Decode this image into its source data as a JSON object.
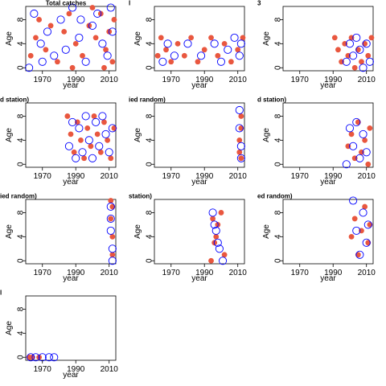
{
  "figure": {
    "xlabel": "year",
    "ylabel": "Age",
    "x_ticks": [
      1970,
      1990,
      2010
    ],
    "y_ticks": [
      0,
      4,
      8
    ],
    "colors": {
      "filled": "#e9573f",
      "outline": "#0000ff"
    }
  },
  "chart_data": [
    {
      "type": "scatter",
      "title": "Total catches",
      "xlabel": "year",
      "ylabel": "Age",
      "xlim": [
        1960,
        2014
      ],
      "ylim": [
        -0.5,
        10.2
      ],
      "series": [
        {
          "name": "",
          "style": "filled",
          "points": [
            [
              1963,
              2
            ],
            [
              1966,
              5
            ],
            [
              1968,
              8
            ],
            [
              1972,
              3
            ],
            [
              1975,
              7
            ],
            [
              1979,
              1
            ],
            [
              1983,
              6
            ],
            [
              1986,
              9
            ],
            [
              1990,
              4
            ],
            [
              1994,
              2
            ],
            [
              1998,
              7
            ],
            [
              2002,
              5
            ],
            [
              2005,
              9
            ],
            [
              2008,
              3
            ],
            [
              2010,
              6
            ],
            [
              2012,
              1
            ],
            [
              2013,
              8
            ],
            [
              2007,
              0
            ],
            [
              2000,
              10
            ],
            [
              1988,
              0
            ]
          ]
        },
        {
          "name": "",
          "style": "open",
          "points": [
            [
              1962,
              0
            ],
            [
              1965,
              9
            ],
            [
              1969,
              4
            ],
            [
              1973,
              6
            ],
            [
              1977,
              2
            ],
            [
              1981,
              8
            ],
            [
              1984,
              3
            ],
            [
              1988,
              10
            ],
            [
              1992,
              5
            ],
            [
              1996,
              1
            ],
            [
              2000,
              7
            ],
            [
              2003,
              9
            ],
            [
              2006,
              4
            ],
            [
              2009,
              2
            ],
            [
              2011,
              10
            ],
            [
              2012,
              6
            ],
            [
              1993,
              8
            ],
            [
              1970,
              1
            ]
          ]
        }
      ]
    },
    {
      "type": "scatter",
      "title": "l",
      "xlabel": "year",
      "ylabel": "Age",
      "xlim": [
        1960,
        2014
      ],
      "ylim": [
        -0.5,
        10.2
      ],
      "series": [
        {
          "name": "",
          "style": "filled",
          "points": [
            [
              1962,
              2
            ],
            [
              1964,
              5
            ],
            [
              1967,
              3
            ],
            [
              1970,
              1
            ],
            [
              1974,
              4
            ],
            [
              1978,
              2
            ],
            [
              1982,
              5
            ],
            [
              1986,
              1
            ],
            [
              1990,
              3
            ],
            [
              1994,
              5
            ],
            [
              1998,
              2
            ],
            [
              2002,
              4
            ],
            [
              2006,
              1
            ],
            [
              2010,
              3
            ],
            [
              2013,
              5
            ]
          ]
        },
        {
          "name": "",
          "style": "open",
          "points": [
            [
              1965,
              1
            ],
            [
              1968,
              4
            ],
            [
              1972,
              2
            ],
            [
              1980,
              4
            ],
            [
              1988,
              2
            ],
            [
              1996,
              4
            ],
            [
              2000,
              1
            ],
            [
              2004,
              3
            ],
            [
              2008,
              5
            ],
            [
              2011,
              2
            ],
            [
              2012,
              4
            ]
          ]
        }
      ]
    },
    {
      "type": "scatter",
      "title": "3",
      "xlabel": "year",
      "ylabel": "Age",
      "xlim": [
        1960,
        2014
      ],
      "ylim": [
        -0.5,
        10.2
      ],
      "series": [
        {
          "name": "",
          "style": "filled",
          "points": [
            [
              1991,
              5
            ],
            [
              1993,
              3
            ],
            [
              1995,
              1
            ],
            [
              1997,
              4
            ],
            [
              1999,
              2
            ],
            [
              2001,
              5
            ],
            [
              2003,
              0
            ],
            [
              2005,
              3
            ],
            [
              2007,
              1
            ],
            [
              2009,
              4
            ],
            [
              2011,
              2
            ],
            [
              2013,
              5
            ]
          ]
        },
        {
          "name": "",
          "style": "open",
          "points": [
            [
              1998,
              1
            ],
            [
              2000,
              4
            ],
            [
              2002,
              2
            ],
            [
              2004,
              5
            ],
            [
              2006,
              3
            ],
            [
              2008,
              0
            ],
            [
              2010,
              4
            ],
            [
              2012,
              1
            ]
          ]
        }
      ]
    },
    {
      "type": "scatter",
      "title": "d station)",
      "xlabel": "year",
      "ylabel": "Age",
      "xlim": [
        1960,
        2014
      ],
      "ylim": [
        -0.5,
        10.2
      ],
      "series": [
        {
          "name": "",
          "style": "filled",
          "points": [
            [
              1985,
              8
            ],
            [
              1987,
              5
            ],
            [
              1989,
              2
            ],
            [
              1991,
              7
            ],
            [
              1993,
              4
            ],
            [
              1995,
              1
            ],
            [
              1997,
              6
            ],
            [
              1999,
              3
            ],
            [
              2001,
              8
            ],
            [
              2003,
              5
            ],
            [
              2005,
              2
            ],
            [
              2007,
              7
            ],
            [
              2009,
              4
            ],
            [
              2011,
              1
            ],
            [
              2013,
              6
            ]
          ]
        },
        {
          "name": "",
          "style": "open",
          "points": [
            [
              1986,
              3
            ],
            [
              1988,
              7
            ],
            [
              1990,
              1
            ],
            [
              1992,
              6
            ],
            [
              1994,
              2
            ],
            [
              1996,
              8
            ],
            [
              1998,
              4
            ],
            [
              2000,
              1
            ],
            [
              2002,
              7
            ],
            [
              2004,
              3
            ],
            [
              2006,
              8
            ],
            [
              2008,
              5
            ],
            [
              2010,
              2
            ],
            [
              2012,
              6
            ]
          ]
        }
      ]
    },
    {
      "type": "scatter",
      "title": "ied random)",
      "xlabel": "year",
      "ylabel": "Age",
      "xlim": [
        1960,
        2014
      ],
      "ylim": [
        -0.5,
        10.2
      ],
      "series": [
        {
          "name": "",
          "style": "filled",
          "points": [
            [
              2011,
              2
            ],
            [
              2011,
              4
            ],
            [
              2012,
              6
            ],
            [
              2012,
              8
            ],
            [
              2012,
              1
            ]
          ]
        },
        {
          "name": "",
          "style": "open",
          "points": [
            [
              2011,
              9
            ],
            [
              2011,
              6
            ],
            [
              2012,
              1
            ],
            [
              2012,
              3
            ]
          ]
        }
      ]
    },
    {
      "type": "scatter",
      "title": "d station)",
      "xlabel": "year",
      "ylabel": "Age",
      "xlim": [
        1960,
        2014
      ],
      "ylim": [
        -0.5,
        10.2
      ],
      "series": [
        {
          "name": "",
          "style": "filled",
          "points": [
            [
              1999,
              3
            ],
            [
              2001,
              5
            ],
            [
              2003,
              1
            ],
            [
              2005,
              7
            ],
            [
              2007,
              2
            ],
            [
              2009,
              4
            ],
            [
              2011,
              0
            ],
            [
              2012,
              6
            ]
          ]
        },
        {
          "name": "",
          "style": "open",
          "points": [
            [
              1998,
              0
            ],
            [
              2000,
              6
            ],
            [
              2002,
              3
            ],
            [
              2004,
              7
            ],
            [
              2006,
              1
            ],
            [
              2008,
              5
            ],
            [
              2010,
              2
            ]
          ]
        }
      ]
    },
    {
      "type": "scatter",
      "title": "ied random)",
      "xlabel": "year",
      "ylabel": "Age",
      "xlim": [
        1960,
        2014
      ],
      "ylim": [
        -0.5,
        10.2
      ],
      "series": [
        {
          "name": "",
          "style": "filled",
          "points": [
            [
              2011,
              10
            ],
            [
              2011,
              7
            ],
            [
              2012,
              4
            ],
            [
              2012,
              1
            ],
            [
              2012,
              9
            ]
          ]
        },
        {
          "name": "",
          "style": "open",
          "points": [
            [
              2011,
              9
            ],
            [
              2011,
              5
            ],
            [
              2012,
              2
            ],
            [
              2012,
              0
            ],
            [
              2011,
              7
            ]
          ]
        }
      ]
    },
    {
      "type": "scatter",
      "title": "station)",
      "xlabel": "year",
      "ylabel": "Age",
      "xlim": [
        1960,
        2014
      ],
      "ylim": [
        -0.5,
        10.2
      ],
      "series": [
        {
          "name": "",
          "style": "filled",
          "points": [
            [
              1994,
              0
            ],
            [
              1996,
              3
            ],
            [
              1998,
              6
            ],
            [
              2000,
              8
            ],
            [
              2002,
              1
            ],
            [
              1995,
              7
            ],
            [
              1997,
              4
            ]
          ]
        },
        {
          "name": "",
          "style": "open",
          "points": [
            [
              1995,
              8
            ],
            [
              1997,
              5
            ],
            [
              1999,
              2
            ],
            [
              2001,
              0
            ],
            [
              1996,
              6
            ],
            [
              1998,
              3
            ]
          ]
        }
      ]
    },
    {
      "type": "scatter",
      "title": "ed random)",
      "xlabel": "year",
      "ylabel": "Age",
      "xlim": [
        1960,
        2014
      ],
      "ylim": [
        -0.5,
        10.2
      ],
      "series": [
        {
          "name": "",
          "style": "filled",
          "points": [
            [
              2001,
              4
            ],
            [
              2003,
              7
            ],
            [
              2005,
              1
            ],
            [
              2007,
              5
            ],
            [
              2009,
              9
            ],
            [
              2011,
              3
            ],
            [
              2012,
              6
            ]
          ]
        },
        {
          "name": "",
          "style": "open",
          "points": [
            [
              2002,
              10
            ],
            [
              2004,
              5
            ],
            [
              2006,
              1
            ],
            [
              2008,
              8
            ],
            [
              2010,
              3
            ],
            [
              2011,
              6
            ]
          ]
        }
      ]
    },
    {
      "type": "scatter",
      "title": "l",
      "xlabel": "year",
      "ylabel": "Age",
      "xlim": [
        1960,
        2014
      ],
      "ylim": [
        -0.5,
        10.2
      ],
      "series": [
        {
          "name": "",
          "style": "filled",
          "points": [
            [
              1962,
              0
            ],
            [
              1964,
              0
            ],
            [
              1968,
              0
            ]
          ]
        },
        {
          "name": "",
          "style": "open",
          "points": [
            [
              1963,
              0
            ],
            [
              1966,
              0
            ],
            [
              1970,
              0
            ],
            [
              1974,
              0
            ],
            [
              1977,
              0
            ]
          ]
        }
      ]
    }
  ]
}
